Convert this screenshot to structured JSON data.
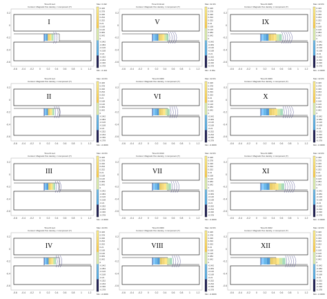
{
  "figure": {
    "panels": [
      {
        "id": "I",
        "time": "Time=0.1e4",
        "max": "Max: 0.432",
        "min": "Min: -0.424",
        "front": 0.06
      },
      {
        "id": "V",
        "time": "Time=0.0ms4",
        "max": "Max: 22.4%",
        "min": "Min: -0.00e",
        "front": 0.22
      },
      {
        "id": "IX",
        "time": "Time=0.0025",
        "max": "Max: 22.0%",
        "min": "Min: -0.0009",
        "front": 0.34
      },
      {
        "id": "II",
        "time": "Time=0.1e4",
        "max": "Max: 22.0%",
        "min": "Min: -0.0009",
        "front": 0.08
      },
      {
        "id": "VI",
        "time": "Time=0.0006",
        "max": "Max: 22.0%",
        "min": "Min: -0.0009",
        "front": 0.25
      },
      {
        "id": "X",
        "time": "Time=0.0009",
        "max": "Max: 22.0%",
        "min": "Min: -0.0009",
        "front": 0.37
      },
      {
        "id": "III",
        "time": "Time=0.1e4",
        "max": "Max: 22.0%",
        "min": "Min: -0.0009",
        "front": 0.1
      },
      {
        "id": "VII",
        "time": "Time=0.0010",
        "max": "Max: 22.0%",
        "min": "Min: -0.0009",
        "front": 0.28
      },
      {
        "id": "XI",
        "time": "Time=0.0080",
        "max": "Max: 22.0%",
        "min": "Min: -0.0009",
        "front": 0.4
      },
      {
        "id": "IV",
        "time": "Time=0.1e4",
        "max": "Max: 22.0%",
        "min": "Min: -0.0009",
        "front": 0.12
      },
      {
        "id": "VIII",
        "time": "Time=0.0000",
        "max": "Max: 22.0%",
        "min": "Min: -0.0009",
        "front": 0.31
      },
      {
        "id": "XII",
        "time": "Time=0.0022",
        "max": "Max: 22.0%",
        "min": "Min: -0.0009",
        "front": 0.43
      }
    ],
    "subtitle": "Contour: Magnetic flux density, z component (T)",
    "x_ticks": [
      "-0.6",
      "-0.4",
      "-0.2",
      "0",
      "0.2",
      "0.4",
      "0.6",
      "0.8",
      "1",
      "1.2"
    ],
    "y_ticks": [
      "0.2",
      "0",
      "-0.2",
      "-0.4",
      "-0.6"
    ],
    "colorbar_labels": [
      "0.426",
      "0.378",
      "0.336",
      "0.294",
      "0.252",
      "0.21",
      "0.168",
      "0.126",
      "0.084",
      "0.042",
      "0",
      "-0.042",
      "-0.084",
      "-0.126",
      "-0.168",
      "-0.21",
      "-0.252",
      "-0.294",
      "-0.336",
      "-0.378"
    ],
    "colors": {
      "contour_hot": "#ffd84a",
      "contour_warm": "#8fd0a0",
      "contour_cold": "#5fb8e0",
      "contour_deep": "#2a2a7a",
      "frame": "#222222"
    }
  }
}
